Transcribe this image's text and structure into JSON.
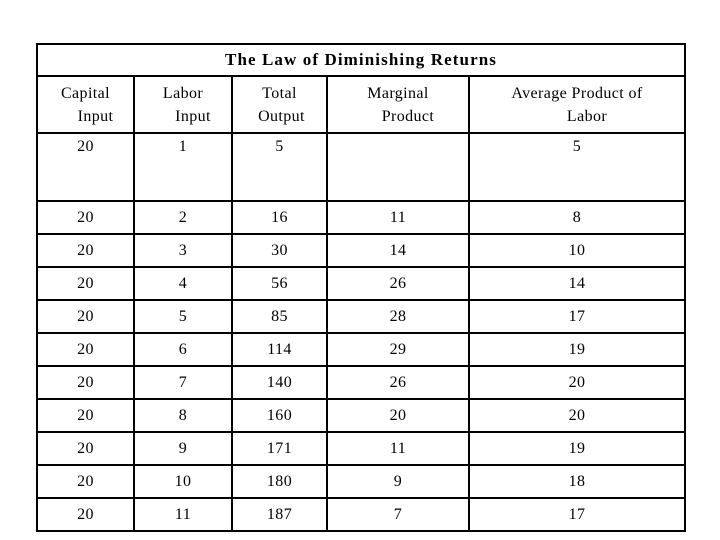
{
  "slide": {
    "background": "#ffffff",
    "border_color": "#000000",
    "text_color": "#000000"
  },
  "table": {
    "title": "The Law of Diminishing Returns",
    "columns": [
      {
        "lines": [
          "Capital",
          "Input"
        ],
        "bold": false
      },
      {
        "lines": [
          "Labor",
          "Input"
        ],
        "bold": false
      },
      {
        "lines": [
          "Total",
          "Output"
        ],
        "bold": false
      },
      {
        "lines": [
          "Marginal",
          "Product"
        ],
        "bold": true
      },
      {
        "lines": [
          "Average Product of",
          "Labor"
        ],
        "bold": true
      }
    ],
    "rows": [
      [
        "20",
        "1",
        "5",
        "",
        "5"
      ],
      [
        "20",
        "2",
        "16",
        "11",
        "8"
      ],
      [
        "20",
        "3",
        "30",
        "14",
        "10"
      ],
      [
        "20",
        "4",
        "56",
        "26",
        "14"
      ],
      [
        "20",
        "5",
        "85",
        "28",
        "17"
      ],
      [
        "20",
        "6",
        "114",
        "29",
        "19"
      ],
      [
        "20",
        "7",
        "140",
        "26",
        "20"
      ],
      [
        "20",
        "8",
        "160",
        "20",
        "20"
      ],
      [
        "20",
        "9",
        "171",
        "11",
        "19"
      ],
      [
        "20",
        "10",
        "180",
        "9",
        "18"
      ],
      [
        "20",
        "11",
        "187",
        "7",
        "17"
      ]
    ]
  },
  "chart_data": {
    "type": "table",
    "title": "The Law of Diminishing Returns",
    "columns": [
      "Capital Input",
      "Labor Input",
      "Total Output",
      "Marginal Product",
      "Average Product of Labor"
    ],
    "rows": [
      [
        20,
        1,
        5,
        null,
        5
      ],
      [
        20,
        2,
        16,
        11,
        8
      ],
      [
        20,
        3,
        30,
        14,
        10
      ],
      [
        20,
        4,
        56,
        26,
        14
      ],
      [
        20,
        5,
        85,
        28,
        17
      ],
      [
        20,
        6,
        114,
        29,
        19
      ],
      [
        20,
        7,
        140,
        26,
        20
      ],
      [
        20,
        8,
        160,
        20,
        20
      ],
      [
        20,
        9,
        171,
        11,
        19
      ],
      [
        20,
        10,
        180,
        9,
        18
      ],
      [
        20,
        11,
        187,
        7,
        17
      ]
    ]
  }
}
